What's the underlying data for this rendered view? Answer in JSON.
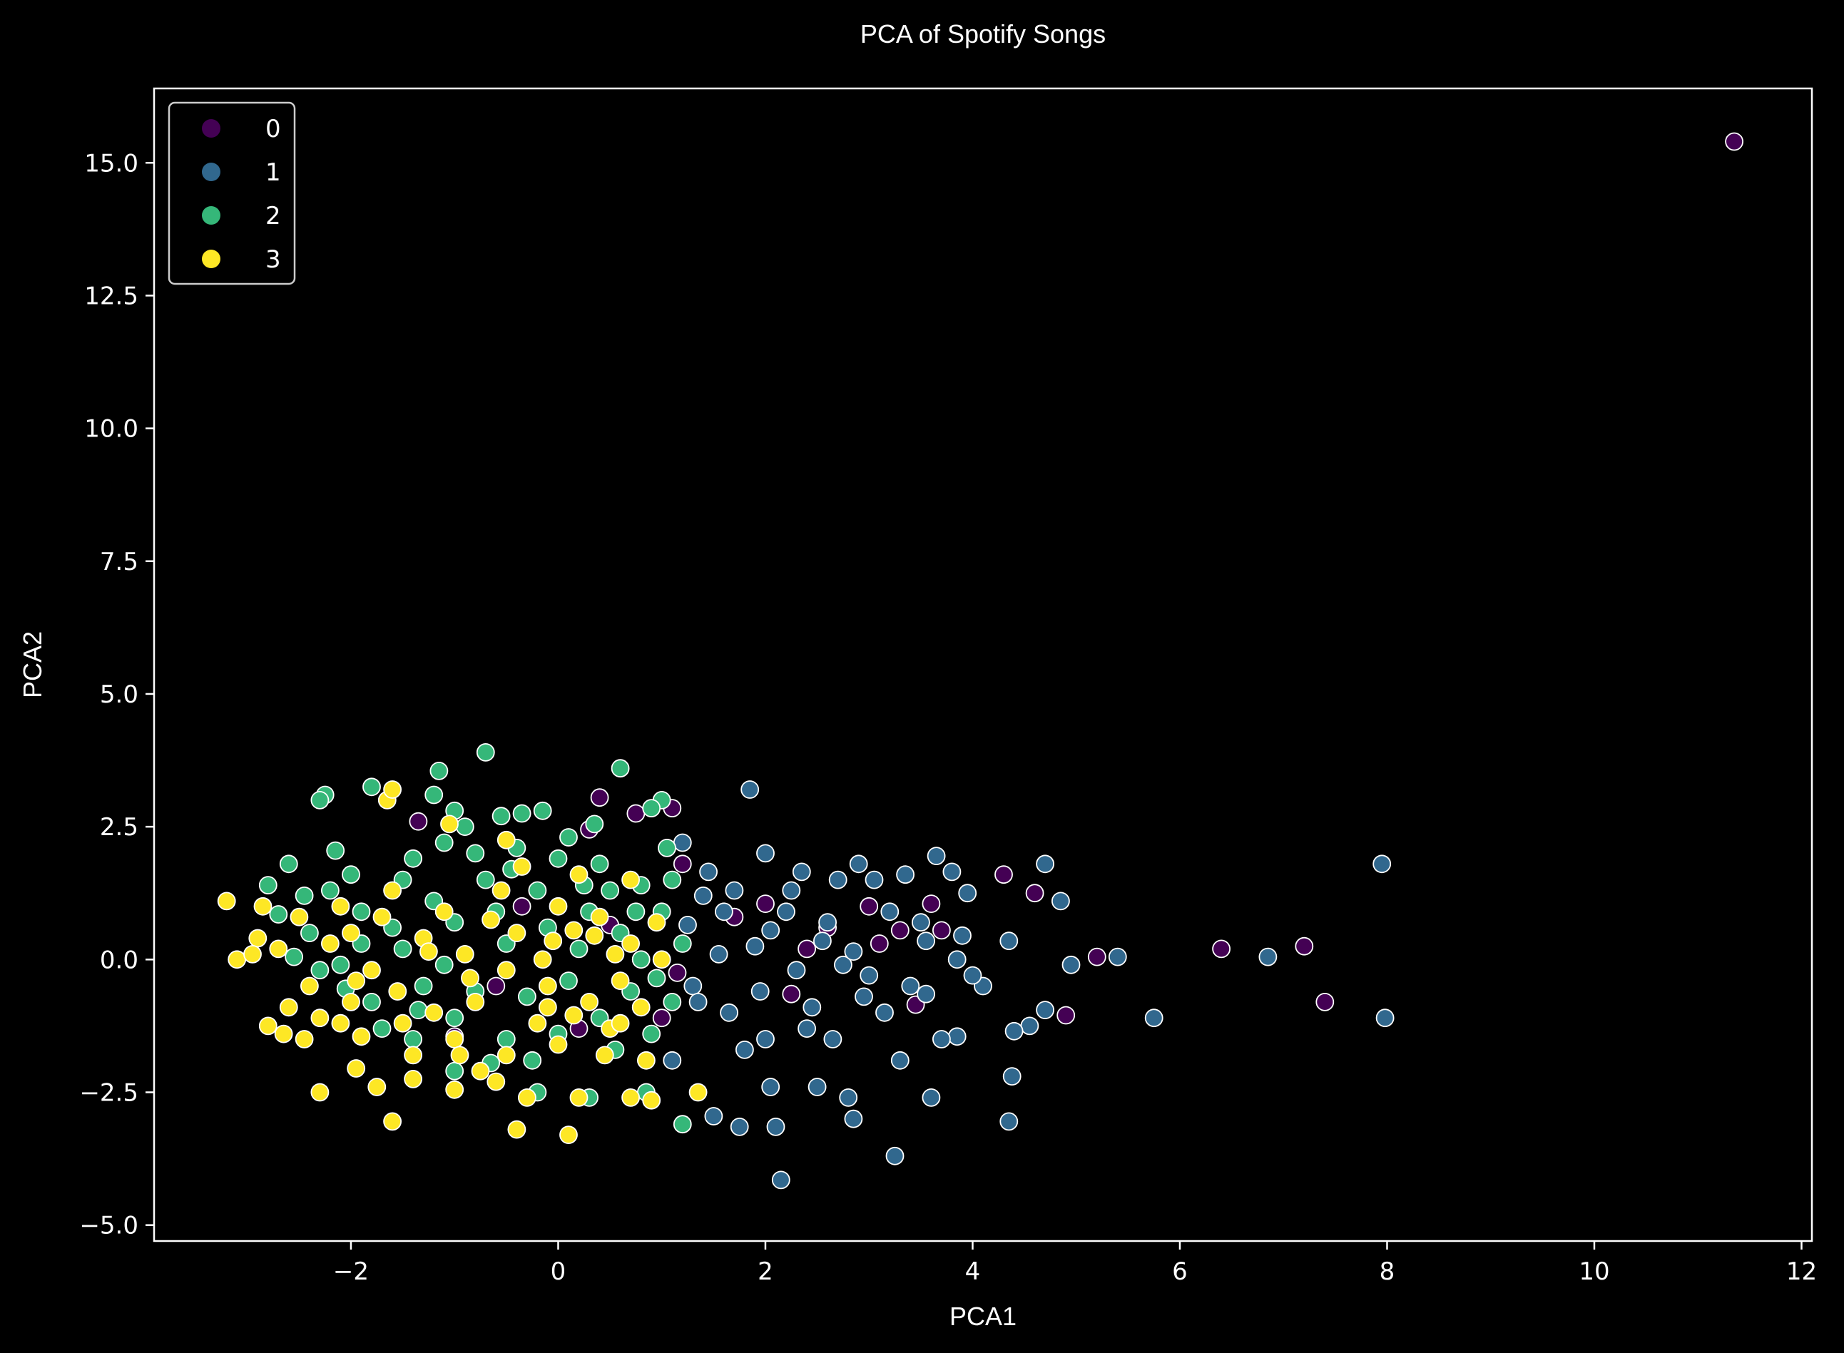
{
  "chart_data": {
    "type": "scatter",
    "title": "PCA of Spotify Songs",
    "xlabel": "PCA1",
    "ylabel": "PCA2",
    "xlim": [
      -3.9,
      12.1
    ],
    "ylim": [
      -5.3,
      16.4
    ],
    "x_ticks": [
      -2,
      0,
      2,
      4,
      6,
      8,
      10,
      12
    ],
    "y_ticks": [
      -5.0,
      -2.5,
      0.0,
      2.5,
      5.0,
      7.5,
      10.0,
      12.5,
      15.0
    ],
    "x_tick_labels": [
      "−2",
      "0",
      "2",
      "4",
      "6",
      "8",
      "10",
      "12"
    ],
    "y_tick_labels": [
      "−5.0",
      "−2.5",
      "0.0",
      "2.5",
      "5.0",
      "7.5",
      "10.0",
      "12.5",
      "15.0"
    ],
    "legend": {
      "position": "top-left",
      "entries": [
        "0",
        "1",
        "2",
        "3"
      ]
    },
    "colors": {
      "0": "#440154",
      "1": "#31688e",
      "2": "#35b779",
      "3": "#fde725",
      "background": "#000000",
      "foreground": "#ffffff"
    },
    "grid": false,
    "series": [
      {
        "name": "0",
        "points": [
          [
            11.35,
            15.4
          ],
          [
            6.4,
            0.2
          ],
          [
            7.2,
            0.25
          ],
          [
            7.4,
            -0.8
          ],
          [
            4.9,
            -1.05
          ],
          [
            5.2,
            0.05
          ],
          [
            4.6,
            1.25
          ],
          [
            4.3,
            1.6
          ],
          [
            3.6,
            1.05
          ],
          [
            3.45,
            -0.85
          ],
          [
            3.3,
            0.55
          ],
          [
            3.0,
            1.0
          ],
          [
            2.6,
            0.6
          ],
          [
            2.25,
            -0.65
          ],
          [
            2.0,
            1.05
          ],
          [
            1.2,
            1.8
          ],
          [
            1.1,
            2.85
          ],
          [
            0.75,
            2.75
          ],
          [
            0.4,
            3.05
          ],
          [
            0.3,
            2.45
          ],
          [
            -1.35,
            2.6
          ],
          [
            -0.35,
            1.0
          ],
          [
            0.2,
            -1.3
          ],
          [
            -1.0,
            -1.45
          ],
          [
            1.15,
            -0.25
          ],
          [
            0.5,
            0.65
          ],
          [
            1.7,
            0.8
          ],
          [
            3.1,
            0.3
          ],
          [
            3.7,
            0.55
          ],
          [
            2.4,
            0.2
          ],
          [
            1.0,
            -1.1
          ],
          [
            -0.6,
            -0.5
          ]
        ]
      },
      {
        "name": "1",
        "points": [
          [
            7.95,
            1.8
          ],
          [
            7.98,
            -1.1
          ],
          [
            6.85,
            0.05
          ],
          [
            5.75,
            -1.1
          ],
          [
            5.4,
            0.05
          ],
          [
            4.95,
            -0.1
          ],
          [
            4.85,
            1.1
          ],
          [
            4.7,
            1.8
          ],
          [
            4.7,
            -0.95
          ],
          [
            4.55,
            -1.25
          ],
          [
            4.35,
            0.35
          ],
          [
            4.35,
            -3.05
          ],
          [
            4.4,
            -1.35
          ],
          [
            4.38,
            -2.2
          ],
          [
            4.1,
            -0.5
          ],
          [
            4.0,
            -0.3
          ],
          [
            3.9,
            0.45
          ],
          [
            3.95,
            1.25
          ],
          [
            3.85,
            -1.45
          ],
          [
            3.7,
            -1.5
          ],
          [
            3.55,
            0.35
          ],
          [
            3.6,
            -2.6
          ],
          [
            3.65,
            1.95
          ],
          [
            3.8,
            1.65
          ],
          [
            3.3,
            -1.9
          ],
          [
            3.25,
            -3.7
          ],
          [
            3.2,
            0.9
          ],
          [
            3.05,
            1.5
          ],
          [
            2.95,
            -0.7
          ],
          [
            2.85,
            -3.0
          ],
          [
            2.8,
            -2.6
          ],
          [
            2.7,
            1.5
          ],
          [
            2.65,
            -1.5
          ],
          [
            2.6,
            0.7
          ],
          [
            2.5,
            -2.4
          ],
          [
            2.4,
            -1.3
          ],
          [
            2.35,
            1.65
          ],
          [
            2.2,
            0.9
          ],
          [
            2.1,
            -3.15
          ],
          [
            2.15,
            -4.15
          ],
          [
            2.05,
            -2.4
          ],
          [
            2.0,
            2.0
          ],
          [
            1.95,
            -0.6
          ],
          [
            1.9,
            0.25
          ],
          [
            1.85,
            3.2
          ],
          [
            1.8,
            -1.7
          ],
          [
            1.75,
            -3.15
          ],
          [
            1.6,
            0.9
          ],
          [
            1.5,
            -2.95
          ],
          [
            1.4,
            1.2
          ],
          [
            1.3,
            -0.5
          ],
          [
            1.2,
            2.2
          ],
          [
            1.1,
            -1.9
          ],
          [
            3.35,
            1.6
          ],
          [
            3.5,
            0.7
          ],
          [
            2.9,
            1.8
          ],
          [
            2.3,
            -0.2
          ],
          [
            1.65,
            -1.0
          ],
          [
            1.45,
            1.65
          ],
          [
            2.75,
            -0.1
          ],
          [
            3.0,
            -0.3
          ],
          [
            2.55,
            0.35
          ],
          [
            2.0,
            -1.5
          ],
          [
            1.55,
            0.1
          ],
          [
            3.15,
            -1.0
          ],
          [
            1.35,
            -0.8
          ],
          [
            1.25,
            0.65
          ],
          [
            2.45,
            -0.9
          ],
          [
            3.4,
            -0.5
          ],
          [
            2.05,
            0.55
          ],
          [
            1.7,
            1.3
          ],
          [
            3.85,
            0.0
          ],
          [
            2.25,
            1.3
          ],
          [
            2.85,
            0.15
          ],
          [
            3.55,
            -0.65
          ]
        ]
      },
      {
        "name": "2",
        "points": [
          [
            -0.7,
            3.9
          ],
          [
            0.6,
            3.6
          ],
          [
            -1.15,
            3.55
          ],
          [
            -1.8,
            3.25
          ],
          [
            -2.25,
            3.1
          ],
          [
            -2.3,
            3.0
          ],
          [
            1.0,
            3.0
          ],
          [
            0.9,
            2.85
          ],
          [
            -0.35,
            2.75
          ],
          [
            -0.55,
            2.7
          ],
          [
            -1.0,
            2.8
          ],
          [
            -1.2,
            3.1
          ],
          [
            -0.15,
            2.8
          ],
          [
            -2.6,
            1.8
          ],
          [
            -2.15,
            2.05
          ],
          [
            -2.8,
            1.4
          ],
          [
            -2.45,
            1.2
          ],
          [
            -2.7,
            0.85
          ],
          [
            -2.55,
            0.05
          ],
          [
            -2.3,
            -0.2
          ],
          [
            -1.9,
            0.9
          ],
          [
            -1.5,
            1.5
          ],
          [
            -1.1,
            2.2
          ],
          [
            -0.8,
            2.0
          ],
          [
            -0.4,
            2.1
          ],
          [
            0.1,
            2.3
          ],
          [
            0.4,
            1.8
          ],
          [
            0.8,
            1.4
          ],
          [
            1.0,
            0.9
          ],
          [
            1.2,
            0.3
          ],
          [
            1.1,
            -0.8
          ],
          [
            1.2,
            -3.1
          ],
          [
            0.85,
            -2.5
          ],
          [
            0.3,
            -2.6
          ],
          [
            -0.2,
            -2.5
          ],
          [
            -1.0,
            -2.1
          ],
          [
            -1.4,
            -1.5
          ],
          [
            -1.8,
            -0.8
          ],
          [
            -2.1,
            -0.1
          ],
          [
            -1.6,
            0.6
          ],
          [
            -1.2,
            1.1
          ],
          [
            -0.7,
            1.5
          ],
          [
            -0.2,
            1.3
          ],
          [
            0.3,
            0.9
          ],
          [
            0.6,
            0.5
          ],
          [
            0.8,
            0.0
          ],
          [
            0.7,
            -0.6
          ],
          [
            0.4,
            -1.1
          ],
          [
            0.0,
            -1.4
          ],
          [
            -0.5,
            -1.5
          ],
          [
            -1.0,
            -1.1
          ],
          [
            -1.3,
            -0.5
          ],
          [
            -1.5,
            0.2
          ],
          [
            -1.0,
            0.7
          ],
          [
            -0.6,
            0.9
          ],
          [
            -0.1,
            0.6
          ],
          [
            0.2,
            0.2
          ],
          [
            0.1,
            -0.4
          ],
          [
            -0.3,
            -0.7
          ],
          [
            -0.8,
            -0.6
          ],
          [
            -1.1,
            -0.1
          ],
          [
            -0.5,
            0.3
          ],
          [
            0.5,
            1.3
          ],
          [
            -2.0,
            1.6
          ],
          [
            -1.7,
            -1.3
          ],
          [
            0.9,
            -1.4
          ],
          [
            1.05,
            2.1
          ],
          [
            -0.9,
            2.5
          ],
          [
            0.35,
            2.55
          ],
          [
            -2.4,
            0.5
          ],
          [
            -1.4,
            1.9
          ],
          [
            0.0,
            1.9
          ],
          [
            0.75,
            0.9
          ],
          [
            -0.25,
            -1.9
          ],
          [
            -2.2,
            1.3
          ],
          [
            -0.65,
            -1.95
          ],
          [
            0.55,
            -1.7
          ],
          [
            -1.9,
            0.3
          ],
          [
            -1.35,
            -0.95
          ],
          [
            0.25,
            1.4
          ],
          [
            0.95,
            -0.35
          ],
          [
            -0.45,
            1.7
          ],
          [
            1.1,
            1.5
          ],
          [
            -2.05,
            -0.55
          ]
        ]
      },
      {
        "name": "3",
        "points": [
          [
            -3.2,
            1.1
          ],
          [
            -3.1,
            0.0
          ],
          [
            -2.9,
            0.4
          ],
          [
            -2.8,
            -1.25
          ],
          [
            -2.65,
            -1.4
          ],
          [
            -2.45,
            -1.5
          ],
          [
            -2.3,
            -2.5
          ],
          [
            -2.1,
            -1.2
          ],
          [
            -1.95,
            -2.05
          ],
          [
            -1.75,
            -2.4
          ],
          [
            -1.6,
            -3.05
          ],
          [
            -1.4,
            -2.25
          ],
          [
            -1.0,
            -2.45
          ],
          [
            -0.6,
            -2.3
          ],
          [
            -0.4,
            -3.2
          ],
          [
            0.1,
            -3.3
          ],
          [
            0.2,
            -2.6
          ],
          [
            0.7,
            -2.6
          ],
          [
            0.9,
            -2.65
          ],
          [
            1.35,
            -2.5
          ],
          [
            -1.65,
            3.0
          ],
          [
            -1.6,
            3.2
          ],
          [
            -1.05,
            2.55
          ],
          [
            -0.5,
            2.25
          ],
          [
            -0.35,
            1.75
          ],
          [
            0.2,
            1.6
          ],
          [
            0.7,
            1.5
          ],
          [
            0.95,
            0.7
          ],
          [
            1.0,
            0.0
          ],
          [
            0.8,
            -0.9
          ],
          [
            0.5,
            -1.3
          ],
          [
            0.0,
            -1.6
          ],
          [
            -0.5,
            -1.8
          ],
          [
            -1.0,
            -1.5
          ],
          [
            -1.5,
            -1.2
          ],
          [
            -2.0,
            -0.8
          ],
          [
            -2.4,
            -0.5
          ],
          [
            -2.7,
            0.2
          ],
          [
            -2.5,
            0.8
          ],
          [
            -2.1,
            1.0
          ],
          [
            -1.7,
            0.8
          ],
          [
            -1.3,
            0.4
          ],
          [
            -0.9,
            0.1
          ],
          [
            -0.5,
            -0.2
          ],
          [
            -0.1,
            -0.5
          ],
          [
            0.3,
            -0.8
          ],
          [
            0.6,
            -0.4
          ],
          [
            0.7,
            0.3
          ],
          [
            0.4,
            0.8
          ],
          [
            0.0,
            1.0
          ],
          [
            -0.4,
            0.5
          ],
          [
            -0.8,
            -0.8
          ],
          [
            -1.2,
            -1.0
          ],
          [
            -1.8,
            -0.2
          ],
          [
            -2.2,
            0.3
          ],
          [
            -0.2,
            -1.2
          ],
          [
            0.45,
            -1.8
          ],
          [
            -0.75,
            -2.1
          ],
          [
            -1.4,
            -1.8
          ],
          [
            -2.6,
            -0.9
          ],
          [
            -2.3,
            -1.1
          ],
          [
            -1.1,
            0.9
          ],
          [
            -0.55,
            1.3
          ],
          [
            0.55,
            0.1
          ],
          [
            -0.05,
            0.35
          ],
          [
            -0.85,
            -0.35
          ],
          [
            -1.55,
            -0.6
          ],
          [
            -2.85,
            1.0
          ],
          [
            -2.95,
            0.1
          ],
          [
            0.85,
            -1.9
          ],
          [
            -0.3,
            -2.6
          ],
          [
            -1.9,
            -1.45
          ],
          [
            0.15,
            -1.05
          ],
          [
            -0.65,
            0.75
          ],
          [
            -1.25,
            0.15
          ],
          [
            -0.1,
            -0.9
          ],
          [
            0.35,
            0.45
          ],
          [
            -1.6,
            1.3
          ],
          [
            -2.0,
            0.5
          ],
          [
            0.6,
            -1.2
          ],
          [
            -0.95,
            -1.8
          ],
          [
            -0.15,
            0.0
          ],
          [
            -1.95,
            -0.4
          ],
          [
            0.15,
            0.55
          ]
        ]
      }
    ]
  }
}
